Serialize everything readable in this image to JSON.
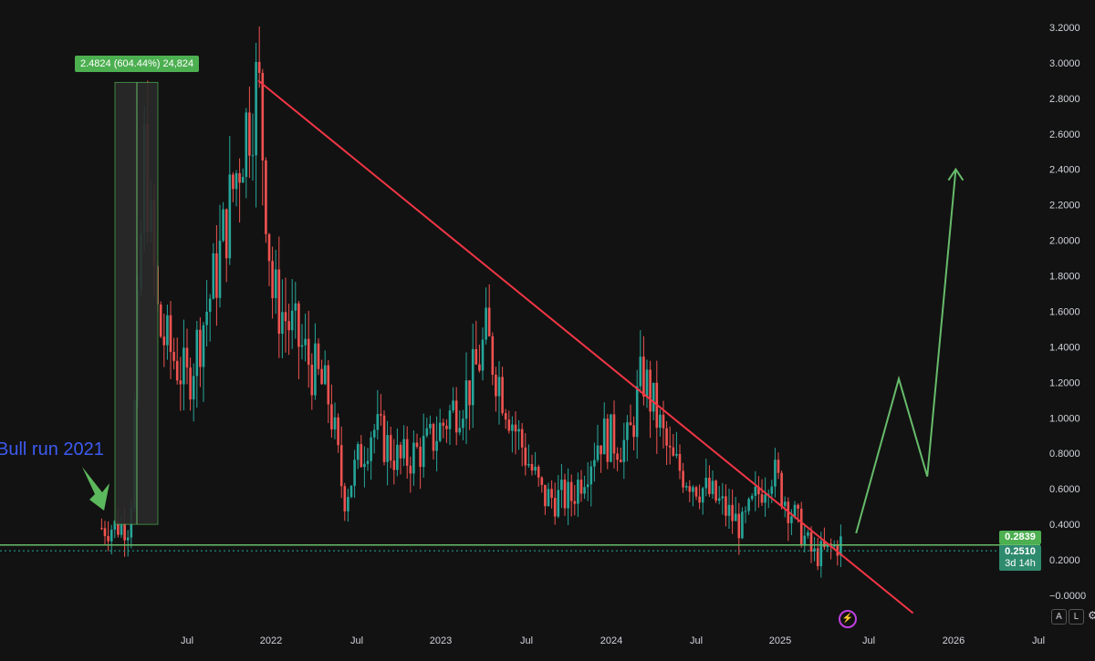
{
  "chart_data": {
    "type": "candlestick",
    "y_axis_ticks": [
      "3.2000",
      "3.0000",
      "2.8000",
      "2.6000",
      "2.4000",
      "2.2000",
      "2.0000",
      "1.8000",
      "1.6000",
      "1.4000",
      "1.2000",
      "1.0000",
      "0.8000",
      "0.6000",
      "0.4000",
      "0.2000",
      "−0.0000"
    ],
    "x_axis_ticks": [
      "Jul",
      "2022",
      "Jul",
      "2023",
      "Jul",
      "2024",
      "Jul",
      "2025",
      "Jul",
      "2026",
      "Jul"
    ],
    "ylim": [
      -0.1,
      3.3
    ],
    "trend_shape": [
      [
        "2021-01",
        0.38
      ],
      [
        "2021-03",
        0.4
      ],
      [
        "2021-04",
        2.5
      ],
      [
        "2021-05",
        1.5
      ],
      [
        "2021-07",
        1.2
      ],
      [
        "2021-09",
        1.8
      ],
      [
        "2021-11",
        2.6
      ],
      [
        "2021-12",
        2.9
      ],
      [
        "2022-01",
        1.7
      ],
      [
        "2022-03",
        1.4
      ],
      [
        "2022-05",
        1.1
      ],
      [
        "2022-06",
        0.55
      ],
      [
        "2022-08",
        0.95
      ],
      [
        "2022-10",
        0.75
      ],
      [
        "2022-12",
        0.85
      ],
      [
        "2023-03",
        1.2
      ],
      [
        "2023-04",
        1.45
      ],
      [
        "2023-06",
        0.95
      ],
      [
        "2023-08",
        0.55
      ],
      [
        "2023-10",
        0.55
      ],
      [
        "2023-12",
        0.9
      ],
      [
        "2024-02",
        0.85
      ],
      [
        "2024-03",
        1.25
      ],
      [
        "2024-05",
        0.75
      ],
      [
        "2024-08",
        0.55
      ],
      [
        "2024-10",
        0.38
      ],
      [
        "2024-11",
        0.55
      ],
      [
        "2024-12",
        0.72
      ],
      [
        "2025-01",
        0.55
      ],
      [
        "2025-03",
        0.22
      ],
      [
        "2025-04",
        0.25
      ],
      [
        "2025-05",
        0.3
      ]
    ],
    "resistance_line": {
      "from": [
        "2021-12",
        2.9
      ],
      "to": [
        "2025-10",
        -0.1
      ],
      "color": "#f23645"
    },
    "support_line": {
      "price": 0.2839,
      "color": "#66bb6a"
    },
    "projection": [
      [
        "2025-06",
        0.35
      ],
      [
        "2025-09",
        1.22
      ],
      [
        "2025-11",
        0.67
      ],
      [
        "2026-01",
        2.4
      ]
    ],
    "measure": {
      "text": "2.4824 (604.44%) 24,824",
      "from": 0.4,
      "to": 2.89
    },
    "annotation": "Bull run 2021"
  },
  "price_labels": {
    "level": "0.2839",
    "last": "0.2510",
    "countdown": "3d 14h"
  },
  "scale_buttons": {
    "auto": "A",
    "log": "L"
  },
  "colors": {
    "up": "#26a69a",
    "down": "#ef5350",
    "projection": "#66bb6a",
    "background": "#121212"
  }
}
